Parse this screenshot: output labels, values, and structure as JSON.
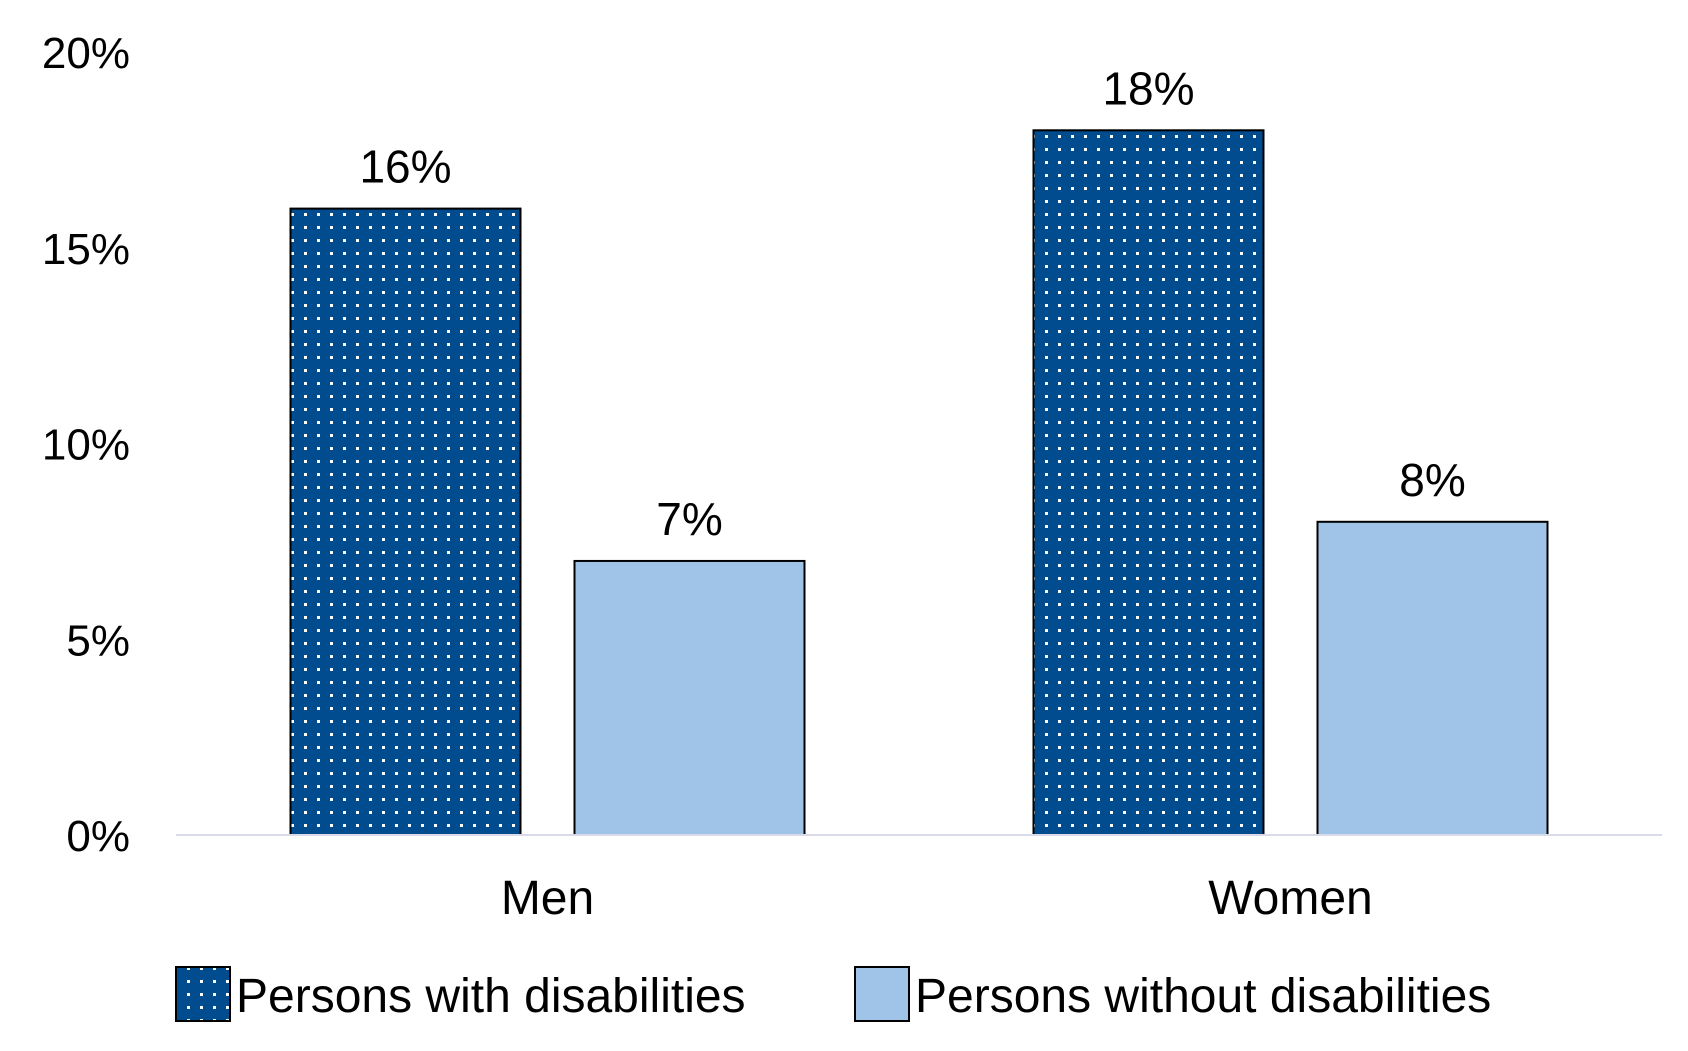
{
  "chart_data": {
    "type": "bar",
    "title": "",
    "xlabel": "",
    "ylabel": "",
    "categories": [
      "Men",
      "Women"
    ],
    "series": [
      {
        "name": "Persons with disabilities",
        "values": [
          16,
          18
        ],
        "labels": [
          "16%",
          "18%"
        ],
        "color": "#004c8f",
        "pattern": "dotted"
      },
      {
        "name": "Persons without disabilities",
        "values": [
          7,
          8
        ],
        "labels": [
          "7%",
          "8%"
        ],
        "color": "#a0c4e8",
        "pattern": "solid"
      }
    ],
    "ylim": [
      0,
      20
    ],
    "yticks": [
      0,
      5,
      10,
      15,
      20
    ],
    "ytick_labels": [
      "0%",
      "5%",
      "10%",
      "15%",
      "20%"
    ],
    "grid": false,
    "legend_position": "bottom"
  }
}
